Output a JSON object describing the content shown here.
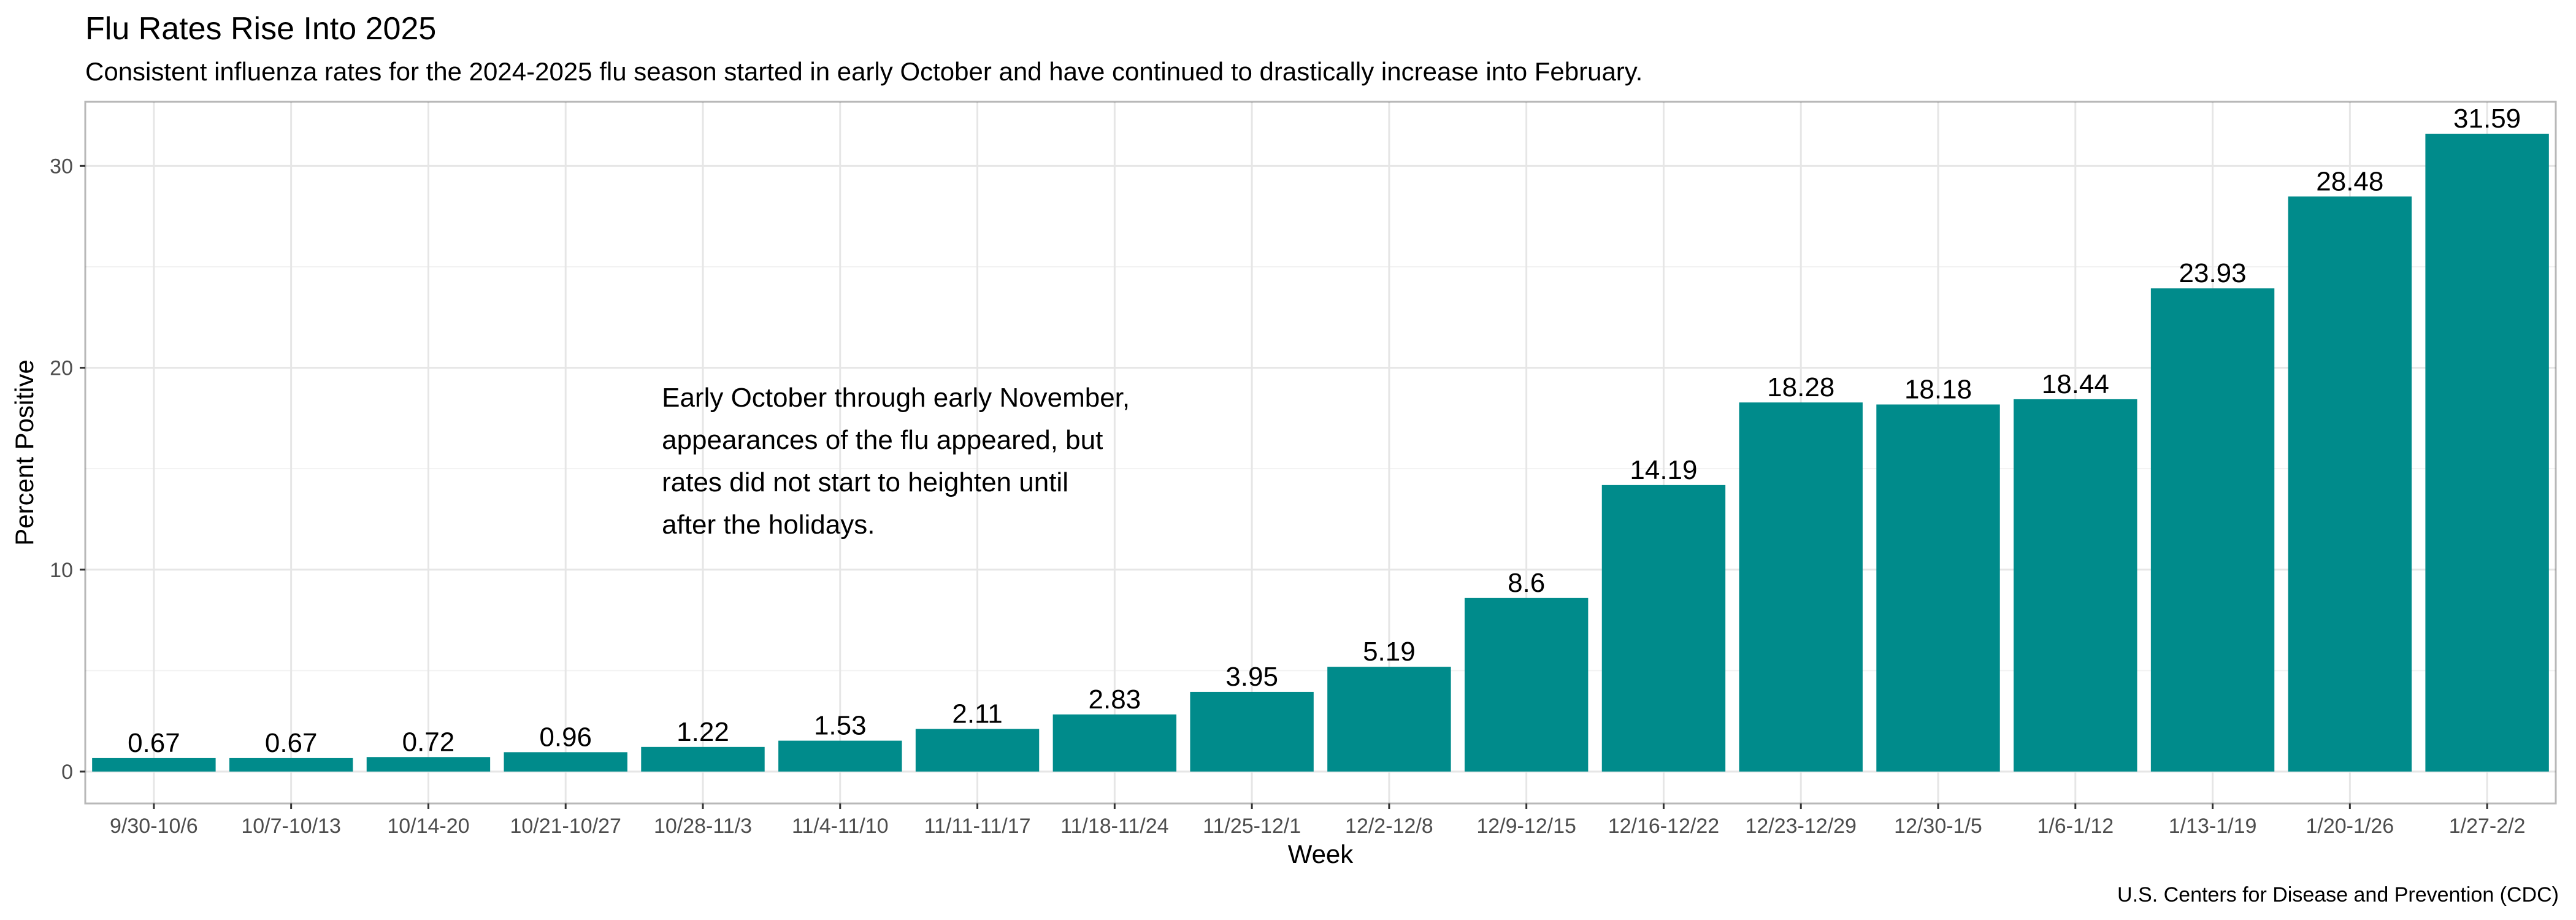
{
  "chart_data": {
    "type": "bar",
    "title": "Flu Rates Rise Into 2025",
    "subtitle": "Consistent influenza rates for the 2024-2025 flu season started in early October and have continued to drastically increase into February.",
    "xlabel": "Week",
    "ylabel": "Percent Positive",
    "caption": "U.S. Centers for Disease and Prevention (CDC)",
    "categories": [
      "9/30-10/6",
      "10/7-10/13",
      "10/14-20",
      "10/21-10/27",
      "10/28-11/3",
      "11/4-11/10",
      "11/11-11/17",
      "11/18-11/24",
      "11/25-12/1",
      "12/2-12/8",
      "12/9-12/15",
      "12/16-12/22",
      "12/23-12/29",
      "12/30-1/5",
      "1/6-1/12",
      "1/13-1/19",
      "1/20-1/26",
      "1/27-2/2"
    ],
    "values": [
      0.67,
      0.67,
      0.72,
      0.96,
      1.22,
      1.53,
      2.11,
      2.83,
      3.95,
      5.19,
      8.6,
      14.19,
      18.28,
      18.18,
      18.44,
      23.93,
      28.48,
      31.59
    ],
    "data_labels": [
      "0.67",
      "0.67",
      "0.72",
      "0.96",
      "1.22",
      "1.53",
      "2.11",
      "2.83",
      "3.95",
      "5.19",
      "8.6",
      "14.19",
      "18.28",
      "18.18",
      "18.44",
      "23.93",
      "28.48",
      "31.59"
    ],
    "yticks": [
      0,
      10,
      20,
      30
    ],
    "ylim": [
      -1.58,
      33.17
    ],
    "grid": true,
    "bar_color": "#008B8B",
    "annotation": {
      "lines": [
        "Early October through early November,",
        "appearances of the flu appeared, but",
        "rates did not start to heighten until",
        "after the holidays."
      ],
      "x_category": "10/28-11/3",
      "y": 18.5
    }
  }
}
